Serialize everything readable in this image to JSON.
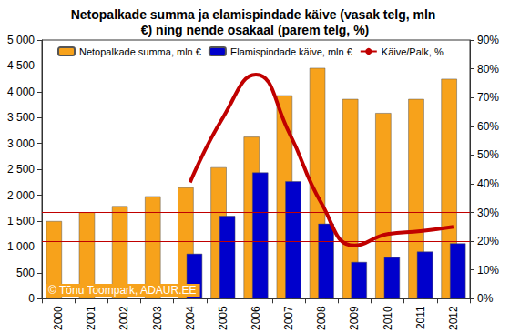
{
  "chart_data": {
    "type": "bar",
    "title": "Netopalkade summa ja elamispindade käive (vasak telg, mln €) ning nende osakaal (parem telg, %)",
    "categories": [
      "2000",
      "2001",
      "2002",
      "2003",
      "2004",
      "2005",
      "2006",
      "2007",
      "2008",
      "2009",
      "2010",
      "2011",
      "2012"
    ],
    "series": [
      {
        "name": "Netopalkade summa, mln €",
        "type": "bar",
        "color": "#f7a21b",
        "values": [
          1500,
          1670,
          1790,
          1980,
          2150,
          2540,
          3130,
          3930,
          4460,
          3860,
          3590,
          3860,
          4250
        ]
      },
      {
        "name": "Elamispindade käive, mln €",
        "type": "bar",
        "color": "#0000cc",
        "values": [
          null,
          null,
          null,
          null,
          870,
          1600,
          2440,
          2270,
          1450,
          710,
          800,
          910,
          1070
        ]
      },
      {
        "name": "Käive/Palk, %",
        "type": "line",
        "color": "#c00000",
        "axis": "y2",
        "line_style": "solid",
        "marker": "none",
        "values": [
          null,
          null,
          null,
          null,
          40.5,
          63,
          78,
          58,
          33,
          18.5,
          22.5,
          23.5,
          25
        ]
      }
    ],
    "ylim": [
      0,
      5000
    ],
    "yticks": [
      0,
      500,
      {
        "value": 1000,
        "label": "1 000"
      },
      {
        "value": 1500,
        "label": "1 500"
      },
      {
        "value": 2000,
        "label": "2 000"
      },
      {
        "value": 2500,
        "label": "2 500"
      },
      {
        "value": 3000,
        "label": "3 000"
      },
      {
        "value": 3500,
        "label": "3 500"
      },
      {
        "value": 4000,
        "label": "4 000"
      },
      {
        "value": 4500,
        "label": "4 500"
      },
      {
        "value": 5000,
        "label": "5 000"
      }
    ],
    "y2lim": [
      0,
      90
    ],
    "y2ticks": [
      {
        "value": 0,
        "label": "0%"
      },
      {
        "value": 10,
        "label": "10%"
      },
      {
        "value": 20,
        "label": "20%"
      },
      {
        "value": 30,
        "label": "30%"
      },
      {
        "value": 40,
        "label": "40%"
      },
      {
        "value": 50,
        "label": "50%"
      },
      {
        "value": 60,
        "label": "60%"
      },
      {
        "value": 70,
        "label": "70%"
      },
      {
        "value": 80,
        "label": "80%"
      },
      {
        "value": 90,
        "label": "90%"
      }
    ],
    "reference_lines": {
      "axis": "y2",
      "color": "#c00000",
      "values": [
        20,
        30
      ]
    },
    "annotations": [
      "© Tõnu Toompark, ADAUR.EE"
    ],
    "grid": false,
    "legend": "top"
  }
}
